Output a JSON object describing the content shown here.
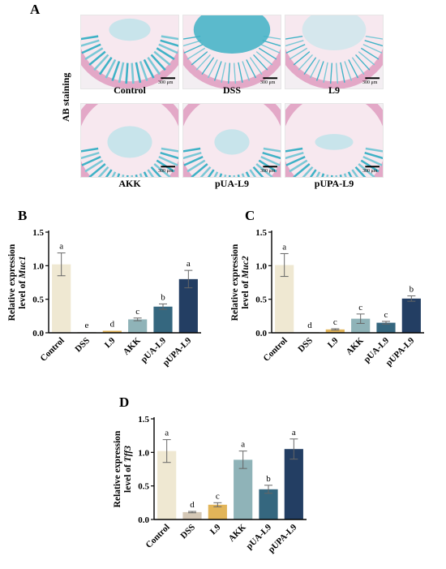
{
  "figure": {
    "panel_a": {
      "letter": "A",
      "side_label": "AB staining",
      "scale_bar_text": "300 μm",
      "images": [
        {
          "label": "Control"
        },
        {
          "label": "DSS"
        },
        {
          "label": "L9"
        },
        {
          "label": "AKK"
        },
        {
          "label": "pUA-L9"
        },
        {
          "label": "pUPA-L9"
        }
      ]
    }
  },
  "colors": {
    "Control": "#efe8d2",
    "DSS": "#d5c8b6",
    "L9": "#e2b559",
    "AKK": "#8fb3b8",
    "pUA-L9": "#35677f",
    "pUPA-L9": "#233e63",
    "stain_blue": "#3fb2c6",
    "stain_pink": "#e3a8c7"
  },
  "chart_data": [
    {
      "panel": "B",
      "type": "bar",
      "ylabel_line1": "Relative expression",
      "ylabel_line2_prefix": "level of ",
      "ylabel_gene": "Muc1",
      "categories": [
        "Control",
        "DSS",
        "L9",
        "AKK",
        "pUA-L9",
        "pUPA-L9"
      ],
      "values": [
        1.02,
        0.01,
        0.03,
        0.2,
        0.39,
        0.8
      ],
      "errors": [
        0.17,
        0.0,
        0.0,
        0.02,
        0.04,
        0.13
      ],
      "letters": [
        "a",
        "e",
        "d",
        "c",
        "b",
        "a"
      ],
      "ylim": [
        0,
        1.5
      ],
      "yticks": [
        "0.0",
        "0.5",
        "1.0",
        "1.5"
      ]
    },
    {
      "panel": "C",
      "type": "bar",
      "ylabel_line1": "Relative expression",
      "ylabel_line2_prefix": "level of ",
      "ylabel_gene": "Muc2",
      "categories": [
        "Control",
        "DSS",
        "L9",
        "AKK",
        "pUA-L9",
        "pUPA-L9"
      ],
      "values": [
        1.01,
        0.01,
        0.05,
        0.21,
        0.15,
        0.51
      ],
      "errors": [
        0.17,
        0.0,
        0.01,
        0.07,
        0.02,
        0.04
      ],
      "letters": [
        "a",
        "d",
        "c",
        "c",
        "c",
        "b"
      ],
      "ylim": [
        0,
        1.5
      ],
      "yticks": [
        "0.0",
        "0.5",
        "1.0",
        "1.5"
      ]
    },
    {
      "panel": "D",
      "type": "bar",
      "ylabel_line1": "Relative expression",
      "ylabel_line2_prefix": "level of ",
      "ylabel_gene": "Tff3",
      "categories": [
        "Control",
        "DSS",
        "L9",
        "AKK",
        "pUA-L9",
        "pUPA-L9"
      ],
      "values": [
        1.02,
        0.11,
        0.22,
        0.89,
        0.45,
        1.05
      ],
      "errors": [
        0.17,
        0.01,
        0.03,
        0.13,
        0.06,
        0.15
      ],
      "letters": [
        "a",
        "d",
        "c",
        "a",
        "b",
        "a"
      ],
      "ylim": [
        0,
        1.5
      ],
      "yticks": [
        "0.0",
        "0.5",
        "1.0",
        "1.5"
      ]
    }
  ]
}
